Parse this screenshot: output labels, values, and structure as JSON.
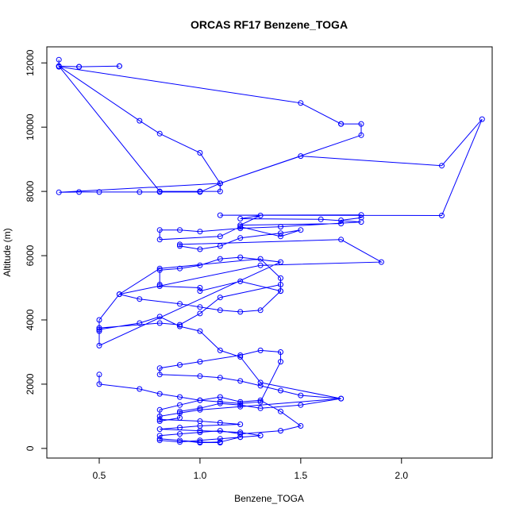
{
  "chart_data": {
    "type": "line",
    "title": "ORCAS RF17 Benzene_TOGA",
    "xlabel": "Benzene_TOGA",
    "ylabel": "Altitude (m)",
    "xlim": [
      0.24,
      2.45
    ],
    "ylim": [
      -300,
      12500
    ],
    "xticks": [
      0.5,
      1.0,
      1.5,
      2.0
    ],
    "xtick_labels": [
      "0.5",
      "1.0",
      "1.5",
      "2.0"
    ],
    "yticks": [
      0,
      2000,
      4000,
      6000,
      8000,
      10000,
      12000
    ],
    "ytick_labels": [
      "0",
      "2000",
      "4000",
      "6000",
      "8000",
      "10000",
      "12000"
    ],
    "grid": false,
    "color": "#0000ff",
    "marker": "open-circle",
    "series": [
      {
        "x": [
          0.3,
          0.3,
          0.4,
          0.6,
          0.6,
          0.4,
          0.3,
          0.8,
          1.0,
          1.1,
          1.1,
          1.0,
          0.8,
          0.7,
          0.3,
          0.3,
          1.5,
          1.7,
          1.7,
          1.8,
          1.8,
          1.1,
          1.0,
          0.8,
          0.7,
          0.5,
          0.4,
          0.3,
          1.1,
          1.5,
          2.2,
          2.4,
          2.2,
          1.1,
          1.8,
          1.8,
          1.7,
          1.7,
          1.2,
          1.3,
          1.2,
          1.6,
          1.8,
          1.4,
          1.2,
          1.0,
          0.9,
          0.8,
          0.8,
          1.1,
          1.2,
          1.4,
          1.5,
          1.4,
          1.2,
          1.1,
          1.0,
          0.9,
          0.9,
          1.7,
          1.9,
          1.3,
          0.6,
          0.7,
          0.9,
          1.0,
          1.1,
          1.2,
          1.3,
          1.4,
          1.4,
          1.3,
          0.8,
          0.6,
          0.5,
          0.5,
          0.5,
          1.4,
          1.2,
          1.1,
          1.0,
          0.9,
          0.8,
          0.8,
          0.8,
          1.0,
          1.0,
          1.2,
          1.4,
          1.4,
          1.1,
          1.0,
          0.9,
          0.8,
          0.5,
          0.5,
          0.7,
          0.8,
          0.9,
          1.0,
          1.1,
          1.2,
          1.3,
          1.7,
          1.5,
          1.3,
          1.2,
          1.1,
          1.0,
          0.9,
          0.9,
          0.8,
          0.8,
          0.9,
          1.0,
          1.1,
          1.2,
          1.3,
          1.4,
          1.5,
          1.4,
          1.2,
          1.1,
          1.0,
          0.9,
          0.8,
          0.8,
          0.9,
          1.0,
          1.1,
          1.2,
          1.3,
          1.2,
          1.1,
          1.0,
          0.9,
          0.8,
          1.0,
          1.1
        ],
        "y": [
          12100,
          11900,
          11880,
          11900,
          11900,
          11880,
          11900,
          8000,
          8000,
          8000,
          8250,
          9200,
          9800,
          10200,
          11900,
          11880,
          10750,
          10100,
          10100,
          10100,
          9750,
          8250,
          7980,
          7980,
          7980,
          7980,
          7980,
          7970,
          8250,
          9100,
          8800,
          10250,
          7250,
          7260,
          7270,
          7180,
          7100,
          7000,
          6950,
          7250,
          7150,
          7130,
          7050,
          6900,
          6850,
          6750,
          6800,
          6800,
          6500,
          6600,
          6900,
          6600,
          6800,
          6700,
          6550,
          6300,
          6200,
          6300,
          6350,
          6500,
          5800,
          5700,
          4800,
          4650,
          4500,
          4400,
          4300,
          4250,
          4300,
          4900,
          5300,
          5900,
          5600,
          4800,
          4000,
          3650,
          3200,
          5800,
          5950,
          5900,
          5700,
          5600,
          5550,
          5100,
          5050,
          5000,
          4900,
          5200,
          4900,
          5100,
          4700,
          4200,
          3850,
          3900,
          3750,
          3700,
          3900,
          4100,
          3800,
          3650,
          3050,
          2850,
          2050,
          1550,
          1350,
          1250,
          1350,
          1400,
          1250,
          1150,
          950,
          850,
          1200,
          1350,
          1500,
          1600,
          1450,
          1500,
          1150,
          700,
          550,
          450,
          550,
          500,
          450,
          400,
          250,
          200,
          250,
          300,
          350,
          400,
          350,
          200,
          180,
          250,
          300,
          200,
          180
        ]
      },
      {
        "x": [
          0.5,
          0.5,
          0.7,
          0.8,
          0.9,
          1.0,
          1.1,
          1.2,
          1.3,
          1.4,
          1.4,
          1.3,
          1.2,
          1.0,
          0.9,
          0.8,
          0.8,
          1.0,
          1.1,
          1.2,
          1.3,
          1.4,
          1.5,
          1.7,
          1.2,
          1.0,
          0.9,
          0.8,
          0.8,
          1.0,
          1.1,
          1.2,
          1.0,
          0.9,
          0.8,
          1.0,
          1.2,
          1.3
        ],
        "y": [
          2300,
          2000,
          1850,
          1700,
          1600,
          1500,
          1450,
          1400,
          1450,
          2700,
          3000,
          3050,
          2900,
          2700,
          2600,
          2500,
          2300,
          2250,
          2200,
          2100,
          1950,
          1800,
          1650,
          1550,
          1300,
          1200,
          1100,
          1000,
          900,
          850,
          800,
          750,
          700,
          650,
          600,
          550,
          500,
          400
        ]
      }
    ]
  }
}
